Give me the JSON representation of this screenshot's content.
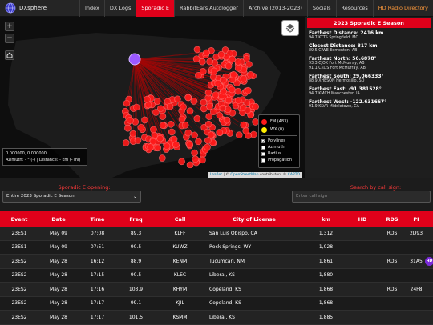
{
  "brand": {
    "name": "DXsphere"
  },
  "nav": [
    {
      "label": "Index",
      "active": false
    },
    {
      "label": "DX Logs",
      "active": false
    },
    {
      "label": "Sporadic E",
      "active": true
    },
    {
      "label": "RabbitEars Autologger",
      "active": false
    },
    {
      "label": "Archive (2013-2023)",
      "active": false
    },
    {
      "label": "Socials",
      "active": false
    },
    {
      "label": "Resources",
      "active": false
    },
    {
      "label": "HD Radio Directory",
      "active": false
    }
  ],
  "map": {
    "zoom_in": "+",
    "zoom_out": "−",
    "coords": "0.000000, 0.000000",
    "azimuth": "Azimuth: - ° (-) | Distance: - km (- mi)",
    "legend": {
      "fm": {
        "label": "FM (483)",
        "color": "#ff1a1a"
      },
      "wx": {
        "label": "WX (0)",
        "color": "#ffee00"
      },
      "options": [
        {
          "label": "Polylines",
          "checked": true
        },
        {
          "label": "Azimuth",
          "checked": false
        },
        {
          "label": "Radius",
          "checked": false
        },
        {
          "label": "Propagation",
          "checked": false
        }
      ]
    },
    "attribution": {
      "leaflet": "Leaflet",
      "sep1": " | © ",
      "osm": "OpenStreetMap",
      "mid": " contributors © ",
      "carto": "CARTO"
    }
  },
  "season": {
    "title": "2023 Sporadic E Season",
    "stats": [
      {
        "heading": "Farthest Distance: 2416 km",
        "sub": [
          "94.7 KTTS Springfield, MO"
        ]
      },
      {
        "heading": "Closest Distance: 817 km",
        "sub": [
          "89.5 CIWE Edmonton, AB"
        ]
      },
      {
        "heading": "Farthest North: 56.6878°",
        "sub": [
          "93.3 CJOK Fort McMurray, AB",
          "91.1 CKOS Fort McMurray, AB"
        ]
      },
      {
        "heading": "Farthest South: 29.066333°",
        "sub": [
          "88.9 XHESON Hermosillo, SO"
        ]
      },
      {
        "heading": "Farthest East: -91.381528°",
        "sub": [
          "94.7 KMCH Manchester, IA"
        ]
      },
      {
        "heading": "Farthest West: -122.631667°",
        "sub": [
          "91.9 KLVR Middletown, CA"
        ]
      }
    ]
  },
  "controls": {
    "opening_label": "Sporadic E opening:",
    "opening_value": "Entire 2023 Sporadic E Season",
    "call_label": "Search by call sign:",
    "call_placeholder": "Enter call sign"
  },
  "table": {
    "headers": [
      "Event",
      "Date",
      "Time",
      "Freq",
      "Call",
      "City of License",
      "km",
      "HD",
      "RDS",
      "PI"
    ],
    "rows": [
      {
        "event": "23ES1",
        "date": "May 09",
        "time": "07:08",
        "freq": "89.3",
        "call": "KLFF",
        "city": "San Luis Obispo, CA",
        "km": "1,312",
        "hd": "",
        "rds": "RDS",
        "pi": "2D93",
        "hd_badge": ""
      },
      {
        "event": "23ES1",
        "date": "May 09",
        "time": "07:51",
        "freq": "90.5",
        "call": "KUWZ",
        "city": "Rock Springs, WY",
        "km": "1,028",
        "hd": "",
        "rds": "",
        "pi": "",
        "hd_badge": ""
      },
      {
        "event": "23ES2",
        "date": "May 28",
        "time": "16:12",
        "freq": "88.9",
        "call": "KENM",
        "city": "Tucumcari, NM",
        "km": "1,861",
        "hd": "",
        "rds": "RDS",
        "pi": "31A5",
        "hd_badge": "HD"
      },
      {
        "event": "23ES2",
        "date": "May 28",
        "time": "17:15",
        "freq": "90.5",
        "call": "KLEC",
        "city": "Liberal, KS",
        "km": "1,880",
        "hd": "",
        "rds": "",
        "pi": "",
        "hd_badge": ""
      },
      {
        "event": "23ES2",
        "date": "May 28",
        "time": "17:16",
        "freq": "103.9",
        "call": "KHYM",
        "city": "Copeland, KS",
        "km": "1,868",
        "hd": "",
        "rds": "RDS",
        "pi": "24F8",
        "hd_badge": ""
      },
      {
        "event": "23ES2",
        "date": "May 28",
        "time": "17:17",
        "freq": "99.1",
        "call": "KJIL",
        "city": "Copeland, KS",
        "km": "1,868",
        "hd": "",
        "rds": "",
        "pi": "",
        "hd_badge": ""
      },
      {
        "event": "23ES2",
        "date": "May 28",
        "time": "17:17",
        "freq": "101.5",
        "call": "KSMM",
        "city": "Liberal, KS",
        "km": "1,885",
        "hd": "",
        "rds": "",
        "pi": "",
        "hd_badge": ""
      }
    ]
  }
}
